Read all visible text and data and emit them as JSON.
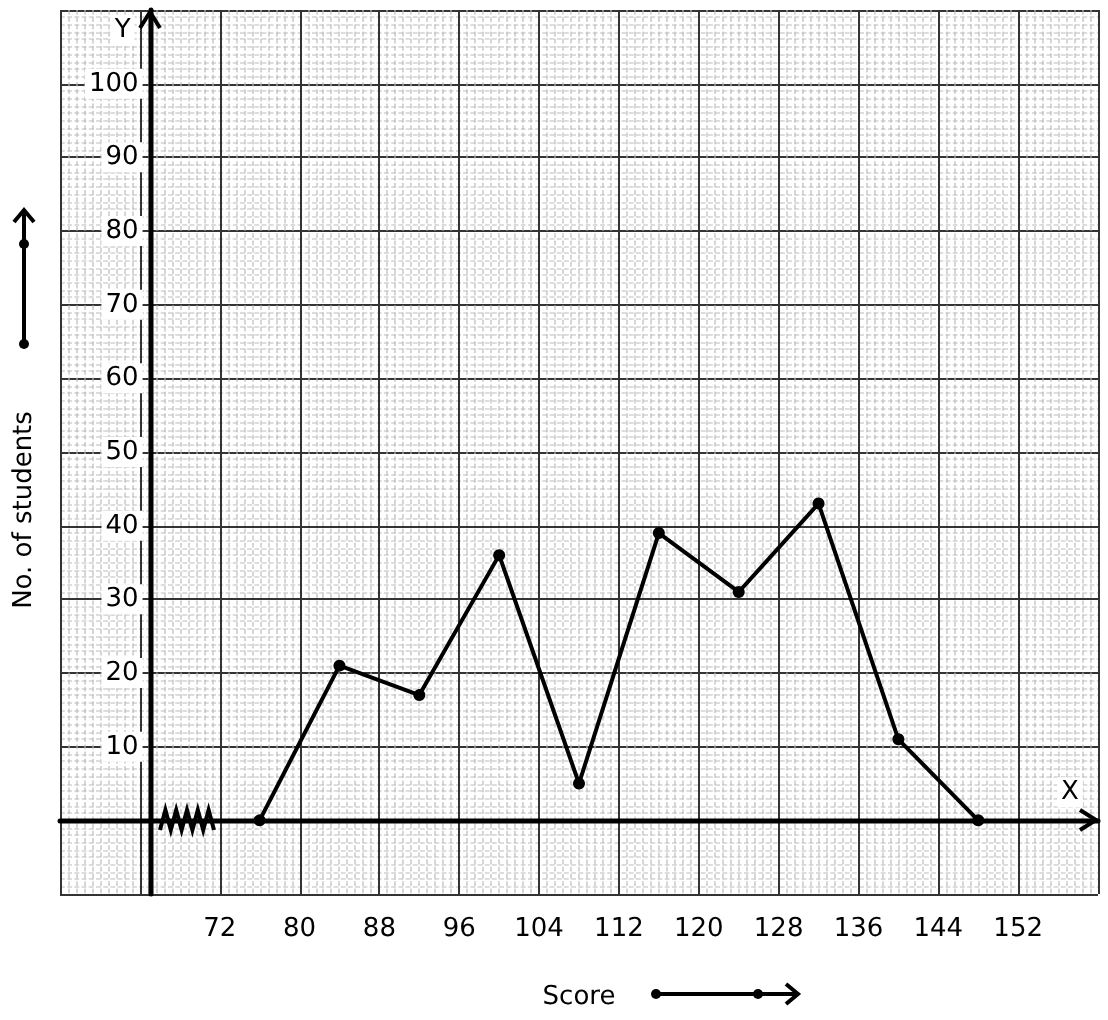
{
  "chart_data": {
    "type": "line",
    "xlabel": "Score",
    "ylabel": "No. of students",
    "x": [
      76,
      84,
      92,
      100,
      108,
      116,
      124,
      132,
      140,
      148
    ],
    "series": [
      {
        "color": "#000000",
        "values": [
          0,
          21,
          17,
          36,
          5,
          39,
          31,
          43,
          11,
          0
        ]
      }
    ],
    "xlim": [
      56,
      160
    ],
    "ylim": [
      -10,
      110
    ],
    "xticks": [
      {
        "value": 64,
        "label": null
      },
      72,
      80,
      88,
      96,
      104,
      112,
      120,
      128,
      136,
      144,
      152
    ],
    "yticks": [
      {
        "value": 0,
        "label": null
      },
      10,
      20,
      30,
      40,
      50,
      60,
      70,
      80,
      90,
      100
    ],
    "annotations": [
      "X",
      "Y"
    ],
    "grid": true,
    "marker": "circle",
    "line_style": "solid"
  }
}
